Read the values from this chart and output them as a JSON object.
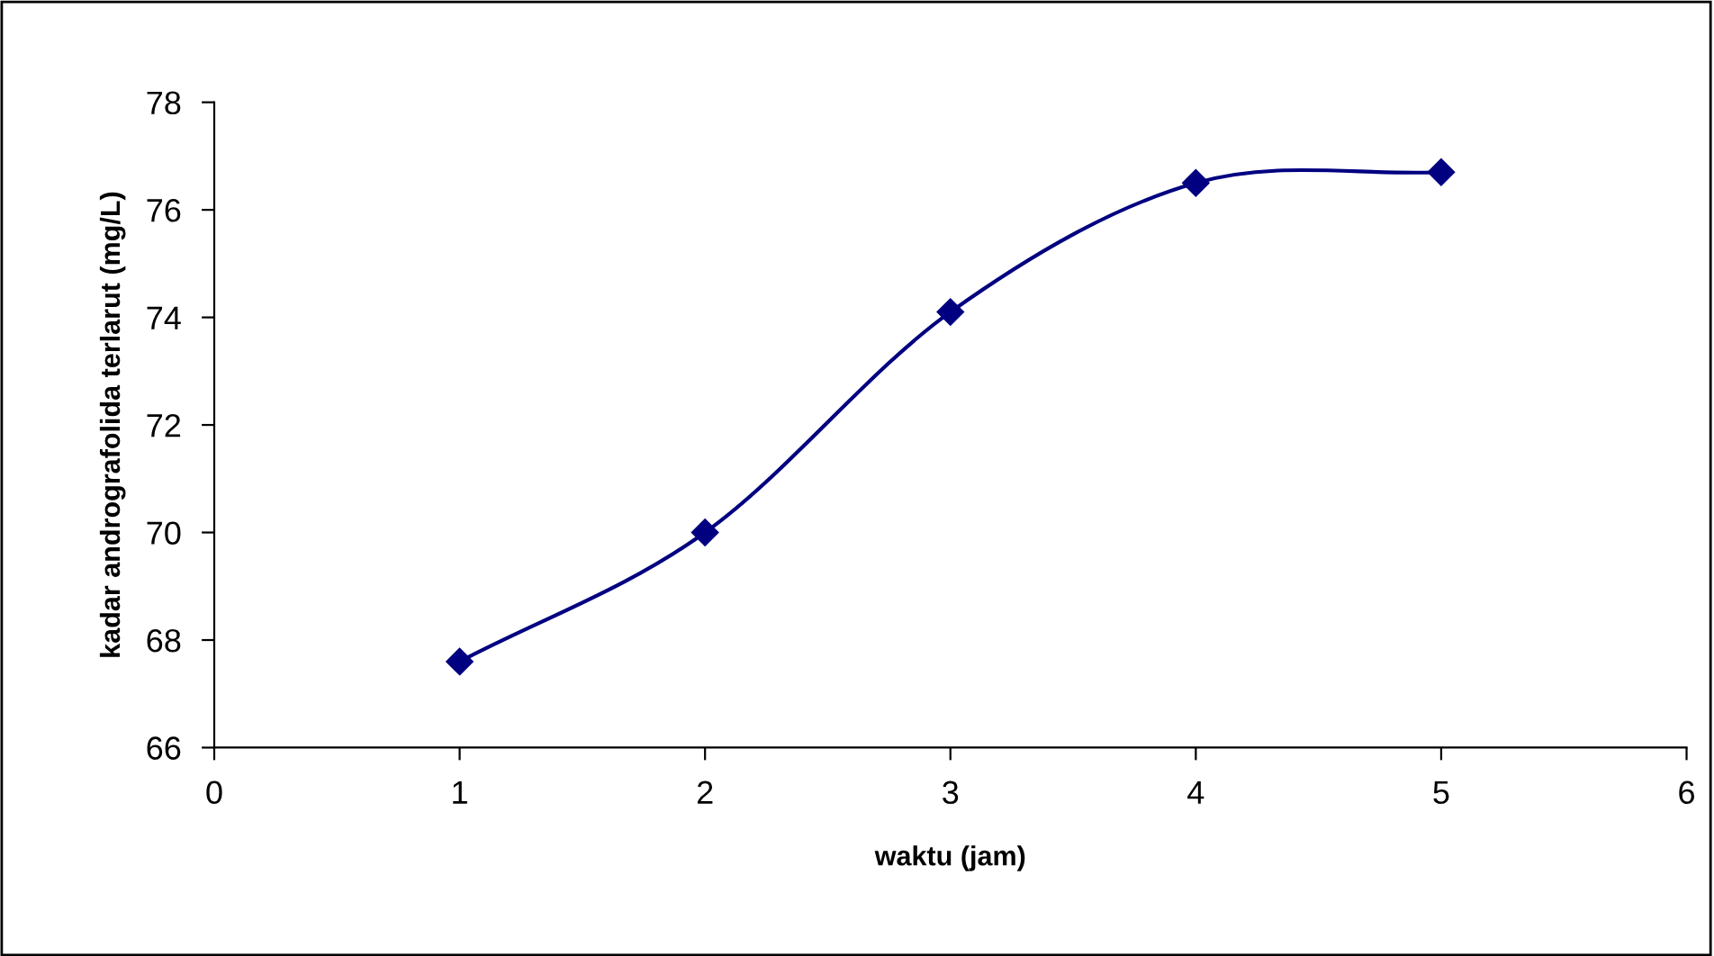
{
  "chart_data": {
    "type": "line",
    "xlabel": "waktu (jam)",
    "ylabel": "kadar andrografolida terlarut (mg/L)",
    "x": [
      1,
      2,
      3,
      4,
      5
    ],
    "series": [
      {
        "color": "#000080",
        "values": [
          67.6,
          70.0,
          74.1,
          76.5,
          76.7
        ]
      }
    ],
    "xlim": [
      0,
      6
    ],
    "xticks": [
      0,
      1,
      2,
      3,
      4,
      5,
      6
    ],
    "ylim": [
      66,
      78
    ],
    "yticks": [
      66,
      68,
      70,
      72,
      74,
      76,
      78
    ],
    "marker": "diamond",
    "line_style": "solid",
    "grid": false,
    "legend": false
  }
}
